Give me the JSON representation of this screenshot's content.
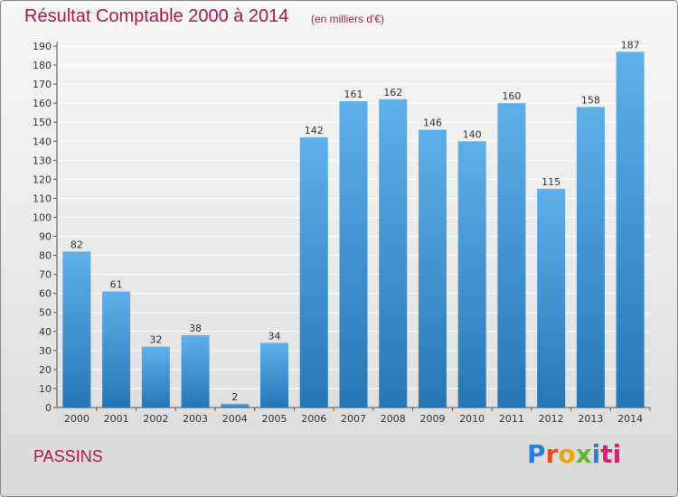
{
  "header": {
    "title": "Résultat Comptable 2000 à 2014",
    "subtitle": "(en milliers d'€)"
  },
  "footer": {
    "location": "PASSINS",
    "logo_text": "Proxiti"
  },
  "colors": {
    "title": "#b0164a",
    "bar_top": "#5eb0ea",
    "bar_bottom": "#2676b6",
    "grid": "#ffffff"
  },
  "chart_data": {
    "type": "bar",
    "categories": [
      "2000",
      "2001",
      "2002",
      "2003",
      "2004",
      "2005",
      "2006",
      "2007",
      "2008",
      "2009",
      "2010",
      "2011",
      "2012",
      "2013",
      "2014"
    ],
    "values": [
      82,
      61,
      32,
      38,
      2,
      34,
      142,
      161,
      162,
      146,
      140,
      160,
      115,
      158,
      187
    ],
    "title": "Résultat Comptable 2000 à 2014",
    "subtitle": "(en milliers d'€)",
    "xlabel": "",
    "ylabel": "",
    "ylim": [
      0,
      190
    ],
    "yticks": [
      0,
      10,
      20,
      30,
      40,
      50,
      60,
      70,
      80,
      90,
      100,
      110,
      120,
      130,
      140,
      150,
      160,
      170,
      180,
      190
    ],
    "grid": true,
    "legend": "none"
  }
}
